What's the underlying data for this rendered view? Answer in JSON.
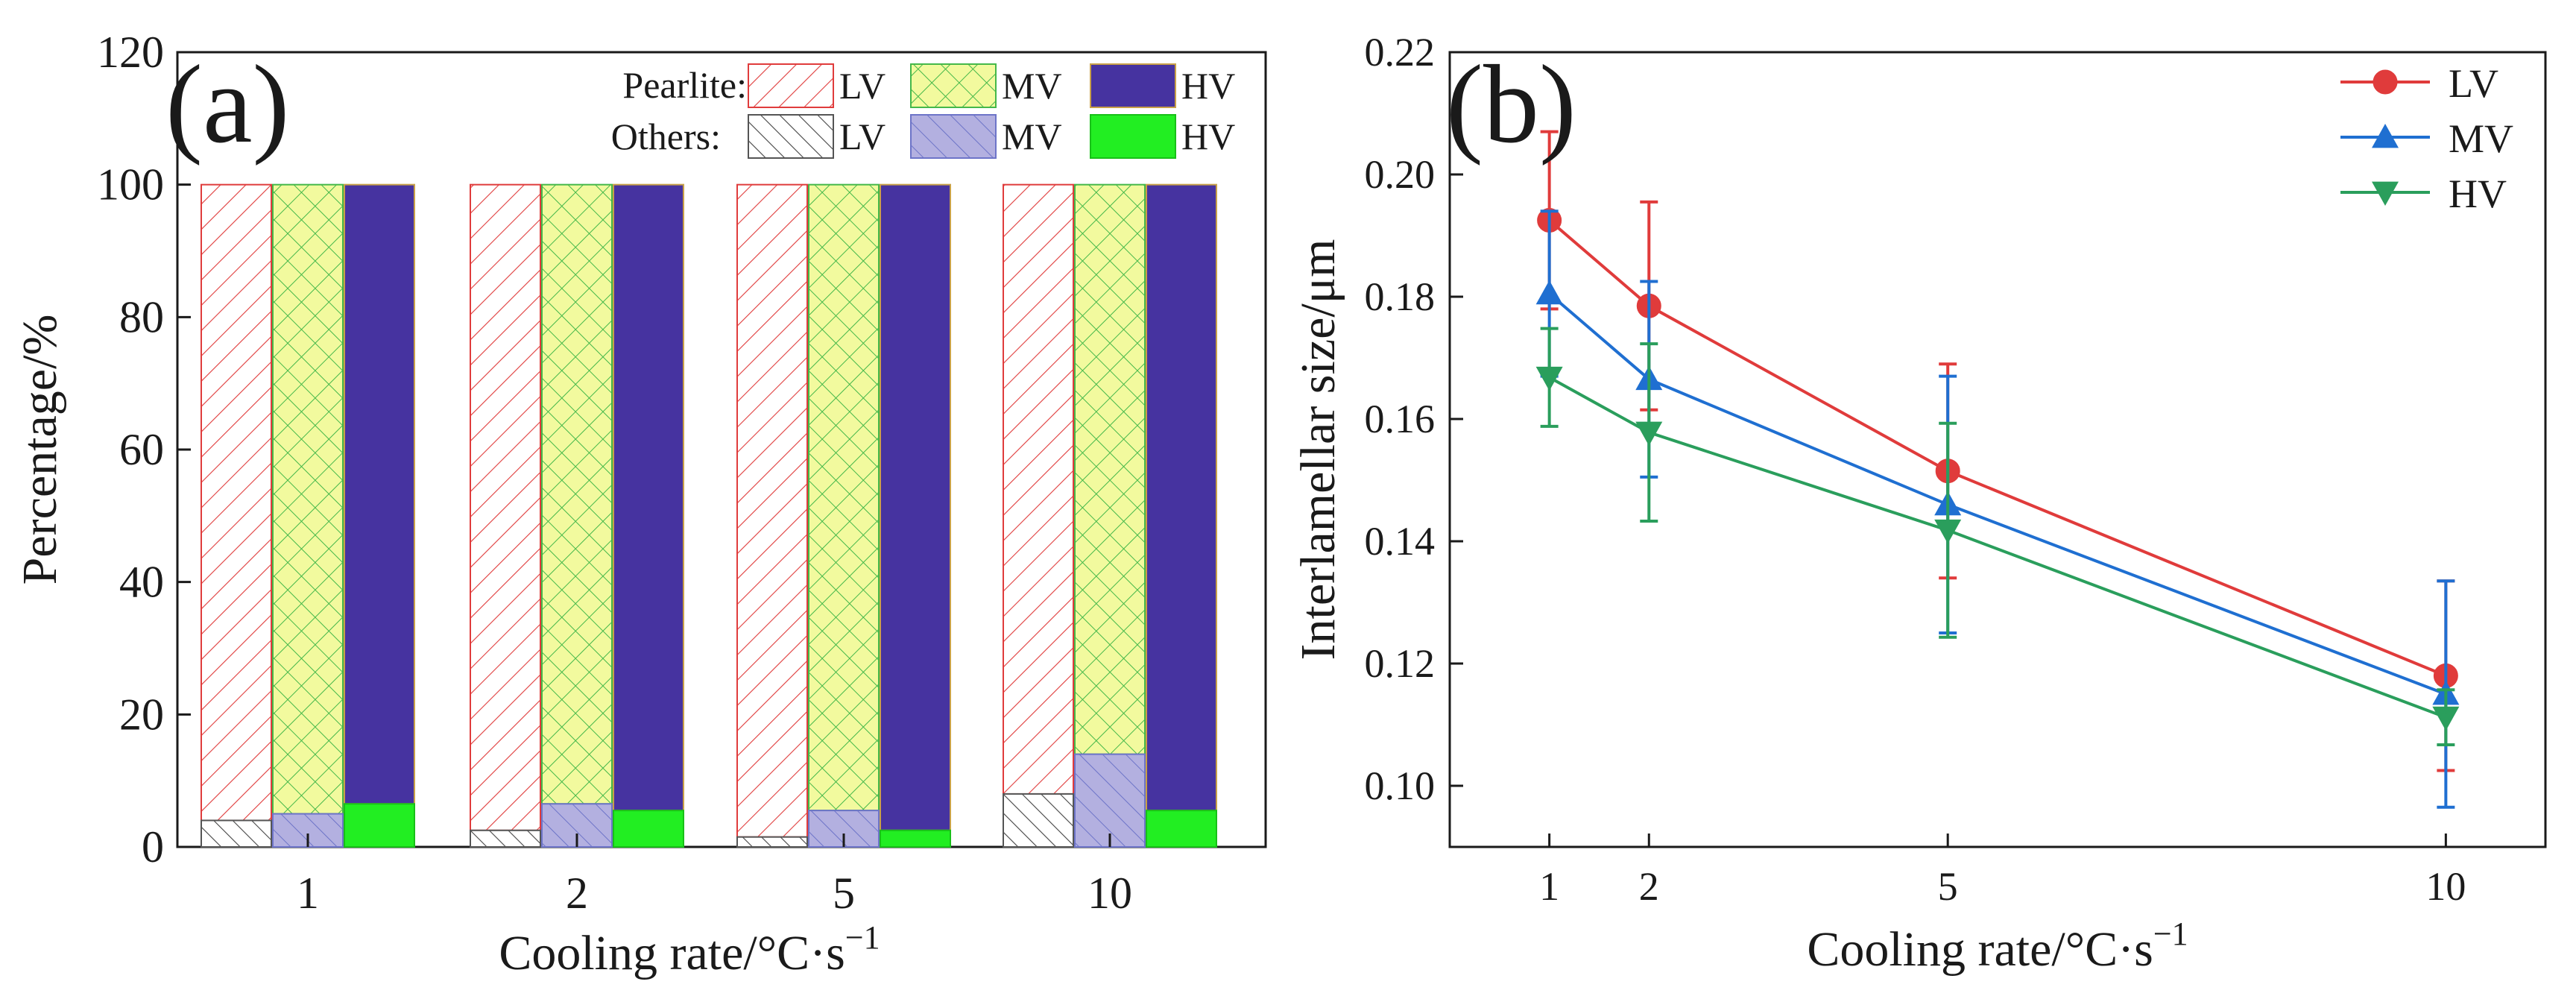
{
  "chart_data": [
    {
      "panel": "(a)",
      "type": "bar",
      "stacked": true,
      "xlabel": "Cooling rate/°C·s",
      "xlabel_sup": "−1",
      "ylabel": "Percentage/%",
      "ylim": [
        0,
        120
      ],
      "yticks": [
        0,
        20,
        40,
        60,
        80,
        100,
        120
      ],
      "categories": [
        "1",
        "2",
        "5",
        "10"
      ],
      "groups": [
        "LV",
        "MV",
        "HV"
      ],
      "legend": {
        "pearlite_label": "Pearlite:",
        "others_label": "Others:",
        "entries": [
          "LV",
          "MV",
          "HV"
        ],
        "placement": "top-right"
      },
      "series": [
        {
          "name": "Others",
          "group_values": {
            "LV": [
              4,
              2.5,
              1.5,
              8
            ],
            "MV": [
              5,
              6.5,
              5.5,
              14
            ],
            "HV": [
              6.5,
              5.5,
              2.5,
              5.5
            ]
          }
        },
        {
          "name": "Pearlite",
          "group_values": {
            "LV": [
              96,
              97.5,
              98.5,
              92
            ],
            "MV": [
              95,
              93.5,
              94.5,
              86
            ],
            "HV": [
              93.5,
              94.5,
              97.5,
              94.5
            ]
          }
        }
      ]
    },
    {
      "panel": "(b)",
      "type": "line",
      "xlabel": "Cooling rate/°C·s",
      "xlabel_sup": "−1",
      "ylabel": "Interlamellar size/μm",
      "x": [
        1,
        2,
        5,
        10
      ],
      "xlim": [
        0,
        11
      ],
      "xticks": [
        1,
        2,
        5,
        10
      ],
      "ylim": [
        0.09,
        0.22
      ],
      "yticks": [
        0.1,
        0.12,
        0.14,
        0.16,
        0.18,
        0.2,
        0.22
      ],
      "legend_placement": "top-right",
      "series": [
        {
          "name": "LV",
          "marker": "circle",
          "values": [
            0.1925,
            0.1785,
            0.1515,
            0.118
          ],
          "error": [
            0.0145,
            0.017,
            0.0175,
            0.0155
          ]
        },
        {
          "name": "MV",
          "marker": "triangle-up",
          "values": [
            0.1805,
            0.1665,
            0.146,
            0.115
          ],
          "error": [
            0.0135,
            0.016,
            0.021,
            0.0185
          ]
        },
        {
          "name": "HV",
          "marker": "triangle-down",
          "values": [
            0.1668,
            0.1578,
            0.1418,
            0.1112
          ],
          "error": [
            0.008,
            0.0145,
            0.0175,
            0.0045
          ]
        }
      ]
    }
  ],
  "colors": {
    "lv_red": "#e03c3c",
    "mv_yellow": "#f2fa9e",
    "mv_grid": "#45b84a",
    "hv_navy": "#4633a0",
    "hv_border": "#c8a049",
    "others_mv": "#b3b0e0",
    "others_mv_hatch": "#6d74c8",
    "others_hv": "#22ee22",
    "line_red": "#e03b3b",
    "line_blue": "#1f6fd1",
    "line_green": "#2a9e5c"
  }
}
